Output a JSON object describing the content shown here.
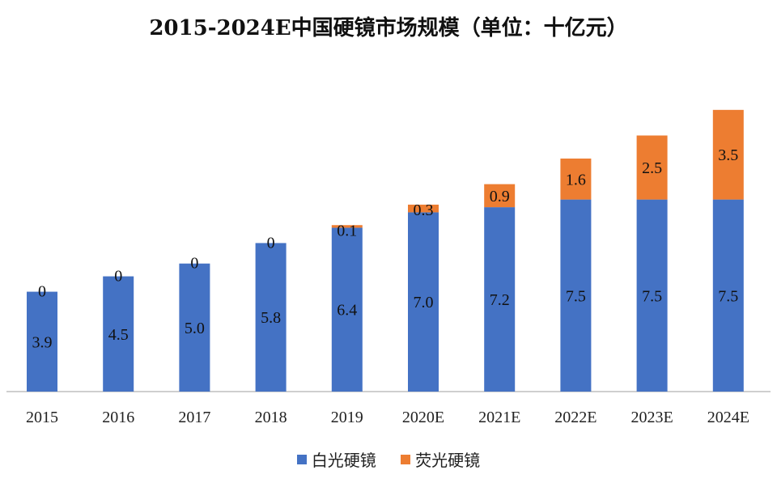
{
  "colors": {
    "white_light": "#4472C4",
    "fluorescence": "#ED7D31",
    "axis": "#BFBFBF"
  },
  "chart_data": {
    "type": "bar",
    "stacked": true,
    "title": "2015-2024E中国硬镜市场规模（单位：十亿元）",
    "categories": [
      "2015",
      "2016",
      "2017",
      "2018",
      "2019",
      "2020E",
      "2021E",
      "2022E",
      "2023E",
      "2024E"
    ],
    "series": [
      {
        "name": "白光硬镜",
        "values": [
          3.9,
          4.5,
          5.0,
          5.8,
          6.4,
          7.0,
          7.2,
          7.5,
          7.5,
          7.5
        ],
        "labels": [
          "3.9",
          "4.5",
          "5.0",
          "5.8",
          "6.4",
          "7.0",
          "7.2",
          "7.5",
          "7.5",
          "7.5"
        ]
      },
      {
        "name": "荧光硬镜",
        "values": [
          0,
          0,
          0,
          0,
          0.1,
          0.3,
          0.9,
          1.6,
          2.5,
          3.5
        ],
        "labels": [
          "0",
          "0",
          "0",
          "0",
          "0.1",
          "0.3",
          "0.9",
          "1.6",
          "2.5",
          "3.5"
        ]
      }
    ],
    "ylim": [
      0,
      11.5
    ],
    "grid": false,
    "legend_position": "bottom"
  }
}
